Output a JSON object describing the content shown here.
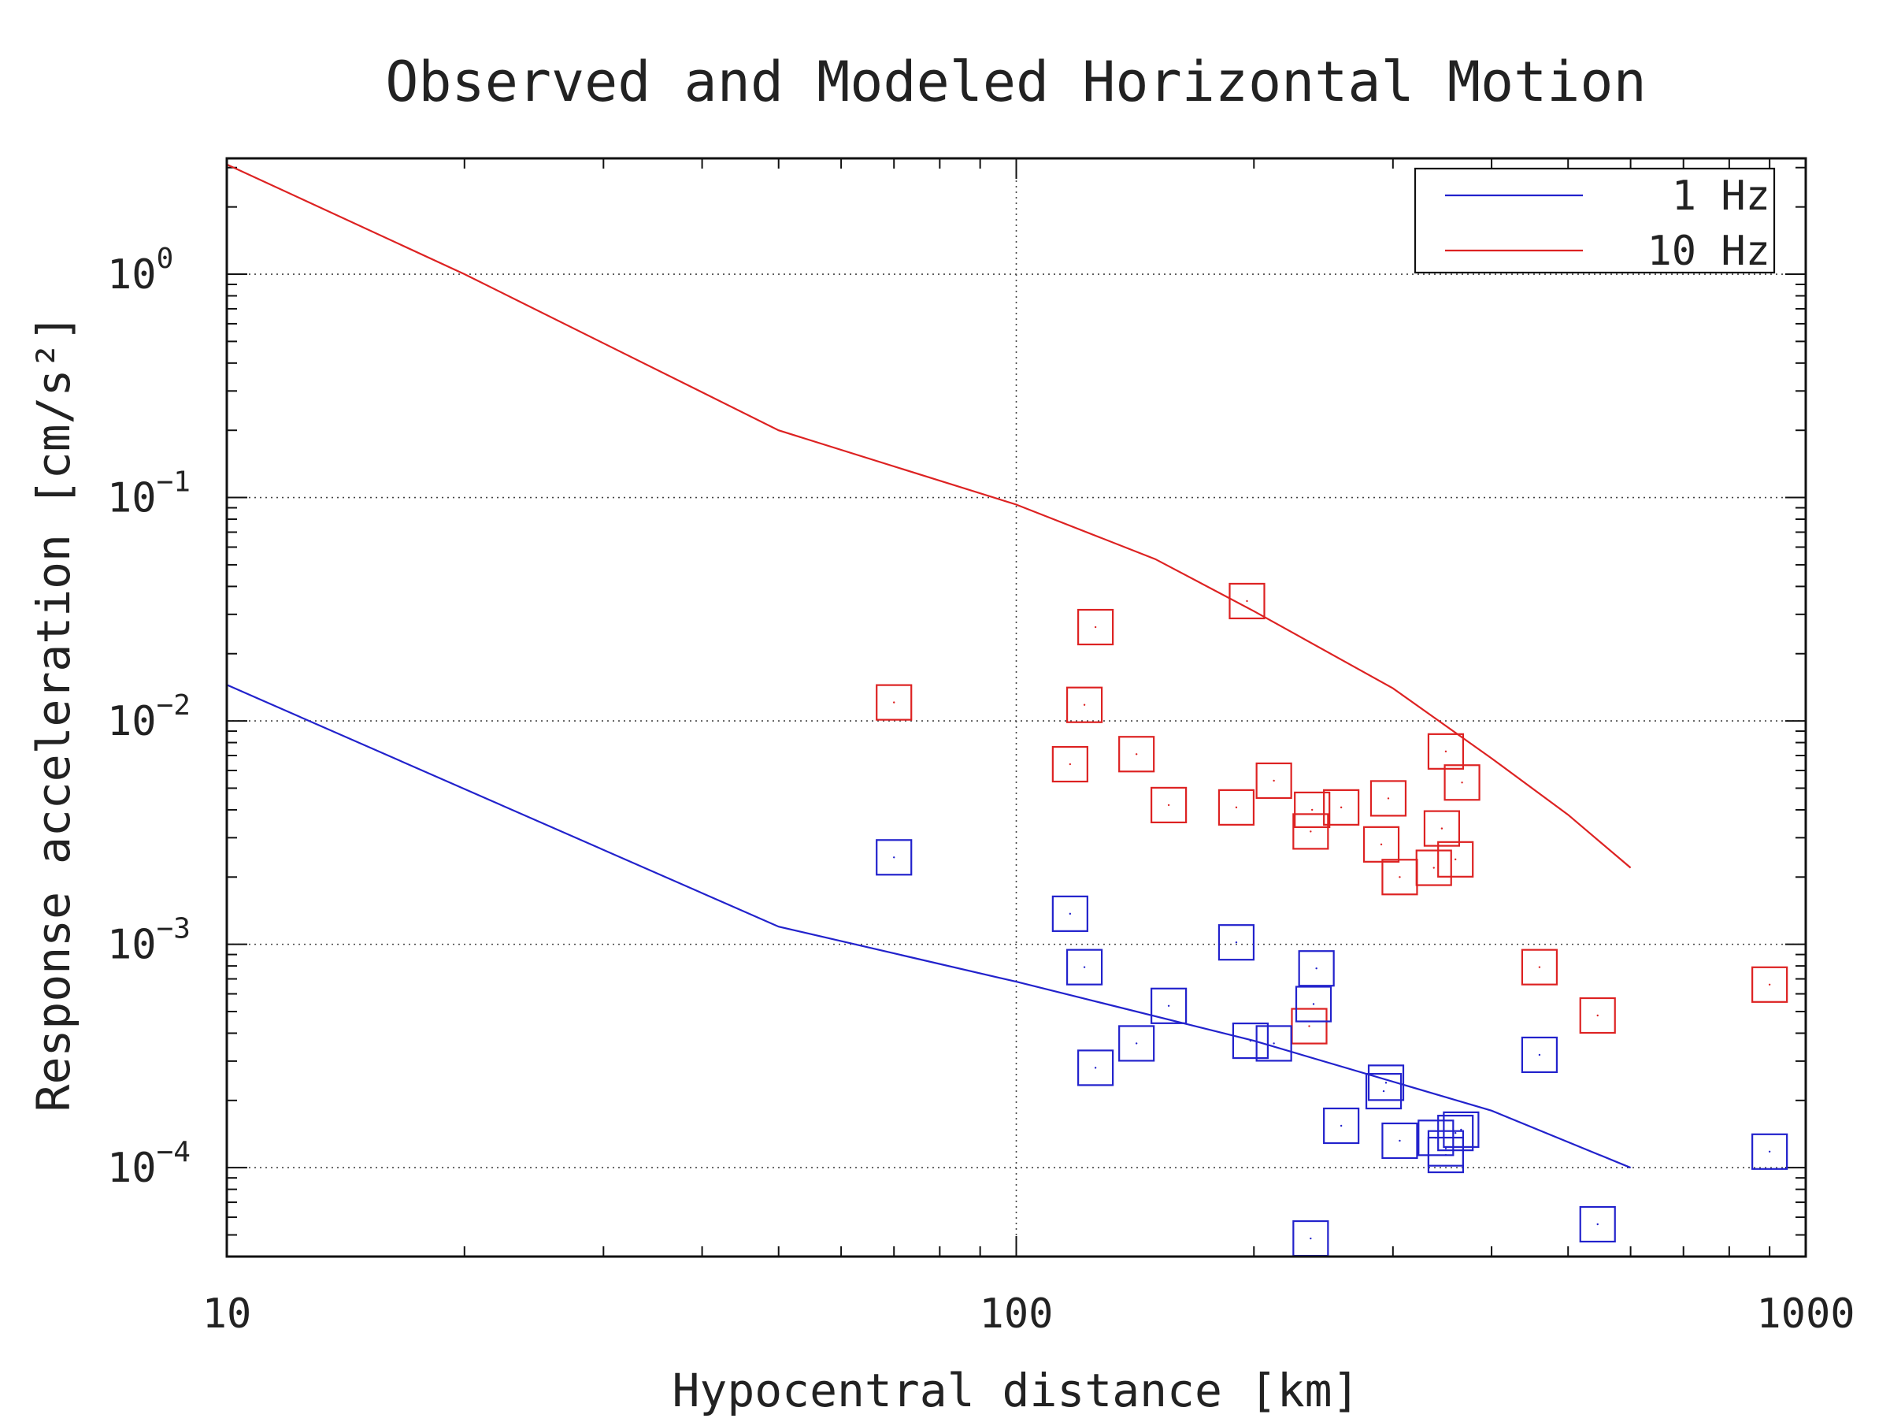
{
  "chart_data": {
    "type": "scatter",
    "title": "Observed and Modeled Horizontal Motion",
    "xlabel": "Hypocentral distance [km]",
    "ylabel": "Response acceleration [cm/s²]",
    "x_scale": "log",
    "y_scale": "log",
    "xlim": [
      10,
      1000
    ],
    "ylim": [
      4e-05,
      3.3
    ],
    "x_ticks": [
      {
        "value": 10,
        "label": "10"
      },
      {
        "value": 100,
        "label": "100"
      },
      {
        "value": 1000,
        "label": "1000"
      }
    ],
    "y_ticks": [
      {
        "value": 1,
        "base": "10",
        "exp": "0"
      },
      {
        "value": 0.1,
        "base": "10",
        "exp": "−1"
      },
      {
        "value": 0.01,
        "base": "10",
        "exp": "−2"
      },
      {
        "value": 0.001,
        "base": "10",
        "exp": "−3"
      },
      {
        "value": 0.0001,
        "base": "10",
        "exp": "−4"
      }
    ],
    "grid": "dotted, at major ticks",
    "legend_position": "top-right",
    "lines": [
      {
        "name": "1 Hz",
        "color": "#2222cc",
        "x": [
          10,
          50,
          100,
          200,
          400,
          600
        ],
        "y": [
          0.0145,
          0.0012,
          0.00068,
          0.00037,
          0.00018,
          0.0001
        ]
      },
      {
        "name": "10 Hz",
        "color": "#dd2222",
        "x": [
          10,
          20,
          50,
          100,
          150,
          200,
          300,
          400,
          500,
          600
        ],
        "y": [
          3.1,
          1.0,
          0.2,
          0.093,
          0.053,
          0.031,
          0.014,
          0.0068,
          0.0038,
          0.0022
        ]
      }
    ],
    "markers": [
      {
        "name": "10 Hz observed",
        "color": "#dd2222",
        "shape": "square",
        "points": [
          [
            70,
            0.0121
          ],
          [
            126,
            0.0263
          ],
          [
            122,
            0.0118
          ],
          [
            117,
            0.0064
          ],
          [
            142,
            0.0071
          ],
          [
            156,
            0.0042
          ],
          [
            196,
            0.0344
          ],
          [
            190,
            0.0041
          ],
          [
            212,
            0.0054
          ],
          [
            237,
            0.004
          ],
          [
            236,
            0.0032
          ],
          [
            258,
            0.0041
          ],
          [
            296,
            0.0045
          ],
          [
            290,
            0.0028
          ],
          [
            306,
            0.002
          ],
          [
            338,
            0.0022
          ],
          [
            346,
            0.0033
          ],
          [
            350,
            0.0073
          ],
          [
            367,
            0.0053
          ],
          [
            360,
            0.0024
          ],
          [
            235,
            0.00043
          ],
          [
            460,
            0.00079
          ],
          [
            545,
            0.00048
          ],
          [
            900,
            0.00066
          ]
        ]
      },
      {
        "name": "1 Hz observed",
        "color": "#2222cc",
        "shape": "square",
        "points": [
          [
            70,
            0.00245
          ],
          [
            117,
            0.00137
          ],
          [
            122,
            0.00079
          ],
          [
            126,
            0.00028
          ],
          [
            142,
            0.00036
          ],
          [
            156,
            0.00053
          ],
          [
            190,
            0.00102
          ],
          [
            198,
            0.00037
          ],
          [
            212,
            0.00036
          ],
          [
            240,
            0.00078
          ],
          [
            238,
            0.00054
          ],
          [
            258,
            0.000154
          ],
          [
            294,
            0.00024
          ],
          [
            292,
            0.00022
          ],
          [
            306,
            0.000132
          ],
          [
            340,
            0.000136
          ],
          [
            350,
            0.000122
          ],
          [
            350,
            0.000114
          ],
          [
            360,
            0.000143
          ],
          [
            366,
            0.000148
          ],
          [
            236,
            4.82e-05
          ],
          [
            460,
            0.00032
          ],
          [
            545,
            5.58e-05
          ],
          [
            900,
            0.000118
          ]
        ]
      }
    ]
  }
}
